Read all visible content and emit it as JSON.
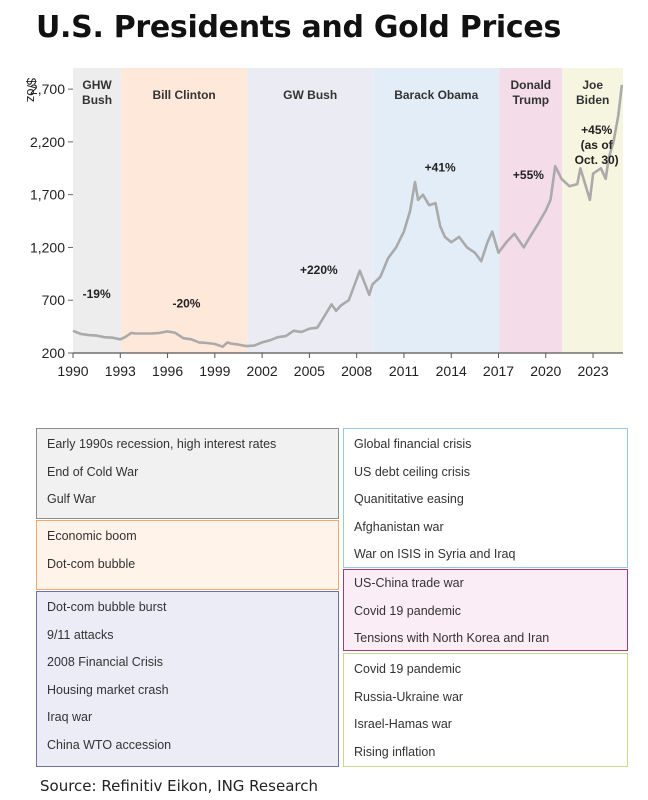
{
  "title": "U.S. Presidents and Gold Prices",
  "source": "Source: Refinitiv Eikon, ING Research",
  "chart_data": {
    "type": "line",
    "ylabel": "$/oz",
    "ylim": [
      200,
      2900
    ],
    "yticks": [
      200,
      700,
      1200,
      1700,
      2200,
      2700
    ],
    "xlim": [
      1990,
      2024.9
    ],
    "xticks": [
      1990,
      1993,
      1996,
      1999,
      2002,
      2005,
      2008,
      2011,
      2014,
      2017,
      2020,
      2023
    ],
    "line_color": "#aaaaaa",
    "series": [
      {
        "x": [
          1990.0,
          1990.5,
          1991.0,
          1991.5,
          1992.0,
          1992.5,
          1993.0,
          1993.3,
          1993.7,
          1994.0,
          1994.5,
          1995.0,
          1995.5,
          1996.0,
          1996.5,
          1997.0,
          1997.5,
          1998.0,
          1998.5,
          1999.0,
          1999.5,
          1999.8,
          2000.0,
          2000.5,
          2001.0,
          2001.5,
          2002.0,
          2002.5,
          2003.0,
          2003.5,
          2004.0,
          2004.5,
          2005.0,
          2005.5,
          2006.0,
          2006.4,
          2006.7,
          2007.0,
          2007.5,
          2008.0,
          2008.2,
          2008.8,
          2009.0,
          2009.5,
          2010.0,
          2010.5,
          2011.0,
          2011.4,
          2011.7,
          2011.9,
          2012.2,
          2012.6,
          2013.0,
          2013.3,
          2013.6,
          2014.0,
          2014.5,
          2015.0,
          2015.5,
          2015.9,
          2016.3,
          2016.6,
          2017.0,
          2017.5,
          2018.0,
          2018.6,
          2019.0,
          2019.5,
          2020.0,
          2020.3,
          2020.6,
          2021.0,
          2021.5,
          2022.0,
          2022.2,
          2022.8,
          2023.0,
          2023.5,
          2023.8,
          2024.0,
          2024.3,
          2024.6,
          2024.83
        ],
        "y": [
          410,
          380,
          370,
          365,
          350,
          345,
          330,
          350,
          390,
          385,
          385,
          385,
          390,
          405,
          390,
          340,
          330,
          300,
          295,
          285,
          260,
          300,
          290,
          280,
          265,
          270,
          300,
          320,
          350,
          360,
          410,
          400,
          430,
          440,
          560,
          660,
          600,
          650,
          700,
          900,
          980,
          750,
          850,
          920,
          1100,
          1200,
          1350,
          1550,
          1820,
          1650,
          1700,
          1600,
          1620,
          1400,
          1300,
          1250,
          1300,
          1200,
          1150,
          1070,
          1250,
          1350,
          1150,
          1250,
          1330,
          1200,
          1300,
          1420,
          1550,
          1650,
          1970,
          1850,
          1780,
          1800,
          1950,
          1650,
          1900,
          1950,
          1850,
          2050,
          2200,
          2450,
          2740
        ]
      }
    ],
    "annotations": [
      {
        "text": "-19%",
        "x": 1991.5,
        "y": 720
      },
      {
        "text": "-20%",
        "x": 1997.2,
        "y": 630
      },
      {
        "text": "+220%",
        "x": 2005.6,
        "y": 950
      },
      {
        "text": "+41%",
        "x": 2013.3,
        "y": 1920
      },
      {
        "text": "+55%",
        "x": 2018.9,
        "y": 1850
      }
    ],
    "biden_note": [
      "+45%",
      "(as of",
      "Oct. 30)"
    ],
    "presidencies": [
      {
        "label": [
          "GHW",
          "Bush"
        ],
        "start": 1990,
        "end": 1993.05,
        "color": "#ededed",
        "notes": [
          "Early 1990s recession, high interest rates",
          "End of Cold War",
          "Gulf War"
        ]
      },
      {
        "label": [
          "Bill Clinton"
        ],
        "start": 1993.05,
        "end": 2001.05,
        "color": "#fde8d9",
        "notes": [
          "Economic boom",
          "Dot-com bubble"
        ]
      },
      {
        "label": [
          "GW Bush"
        ],
        "start": 2001.05,
        "end": 2009.05,
        "color": "#ebebf4",
        "notes": [
          "Dot-com bubble burst",
          "9/11 attacks",
          "2008 Financial Crisis",
          "Housing market crash",
          "Iraq war",
          "China WTO accession"
        ]
      },
      {
        "label": [
          "Barack Obama"
        ],
        "start": 2009.05,
        "end": 2017.05,
        "color": "#e3edf8",
        "notes": [
          "Global financial crisis",
          "US debt ceiling crisis",
          "Quanititative easing",
          "Afghanistan war",
          "War on ISIS in Syria and Iraq"
        ]
      },
      {
        "label": [
          "Donald",
          "Trump"
        ],
        "start": 2017.05,
        "end": 2021.05,
        "color": "#f4dde9",
        "notes": [
          "US-China trade war",
          "Covid 19 pandemic",
          "Tensions with North Korea and Iran"
        ]
      },
      {
        "label": [
          "Joe",
          "Biden"
        ],
        "start": 2021.05,
        "end": 2024.9,
        "color": "#f6f6e0",
        "notes": [
          "Covid 19 pandemic",
          "Russia-Ukraine war",
          "Israel-Hamas war",
          "Rising inflation"
        ]
      }
    ]
  },
  "boxes": [
    {
      "border": "#8c8c8c",
      "bg": "#f1f1f1",
      "items_from": 0
    },
    {
      "border": "#f1a86a",
      "bg": "#fff3ea",
      "items_from": 1
    },
    {
      "border": "#6e7199",
      "bg": "#ececf6",
      "items_from": 2
    },
    {
      "border": "#9ac6ea",
      "bg": "#ffffff",
      "items_from": 3
    },
    {
      "border": "#a83a77",
      "bg": "#fbedf5",
      "items_from": 4
    },
    {
      "border": "#c9d98a",
      "bg": "#ffffff",
      "items_from": 5
    }
  ]
}
